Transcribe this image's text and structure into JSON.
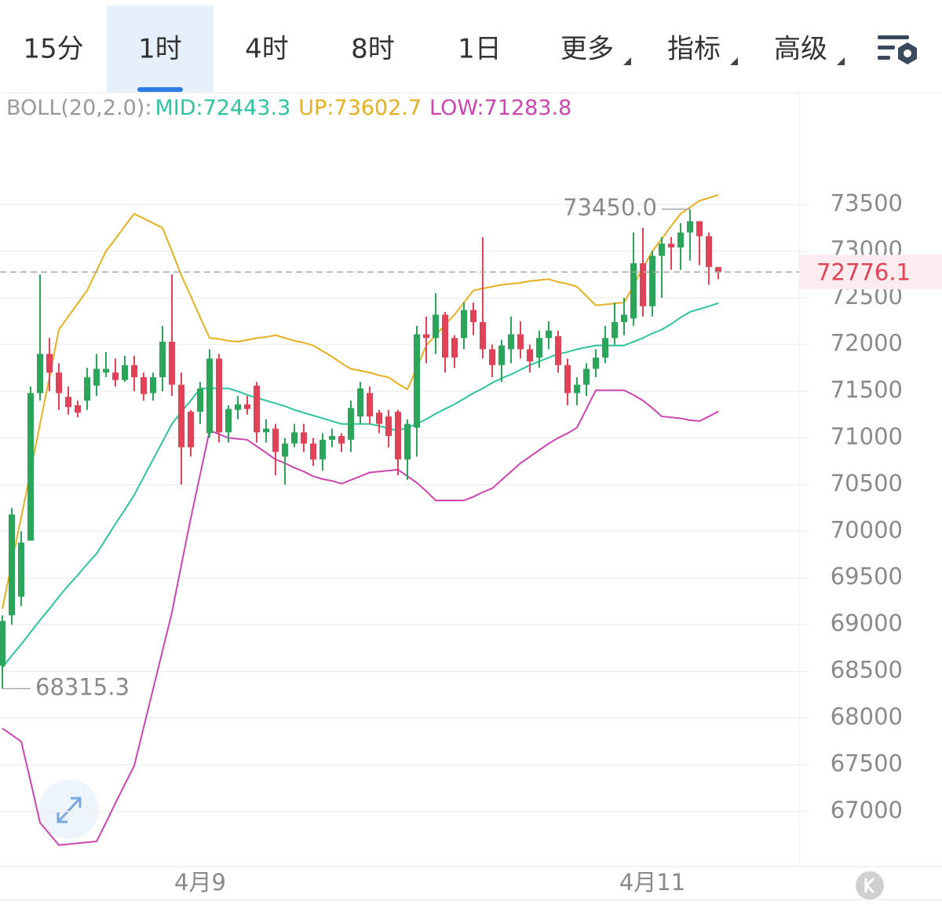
{
  "tabs": {
    "items": [
      "15分",
      "1时",
      "4时",
      "8时",
      "1日",
      "更多",
      "指标",
      "高级"
    ],
    "selected": 1
  },
  "chart_data": {
    "type": "candlestick",
    "indicator": "BOLL(20,2.0):",
    "up_color": "#2aa55a",
    "down_color": "#e04257",
    "ylim": [
      66410,
      74680
    ],
    "yticks": [
      73500,
      73000,
      72500,
      72000,
      71500,
      71000,
      70500,
      70000,
      69500,
      69000,
      68500,
      68000,
      67500,
      67000
    ],
    "xticks": [
      {
        "value": 21,
        "label": "4月9"
      },
      {
        "value": 69,
        "label": "4月11"
      }
    ],
    "grid": true,
    "last_price": {
      "value": 72776.1,
      "label": "72776.1"
    },
    "annotations": [
      {
        "index": 73,
        "value": 73450,
        "label": "73450.0"
      },
      {
        "index": 0,
        "value": 68315.3,
        "label": "68315.3"
      }
    ],
    "open": [
      68560,
      69100,
      69300,
      69900,
      71480,
      71900,
      71700,
      71440,
      71350,
      71400,
      71560,
      71700,
      71700,
      71620,
      71780,
      71650,
      71480,
      71650,
      72030,
      71570,
      71280,
      71280,
      71050,
      71850,
      71060,
      71300,
      71360,
      71560,
      71060,
      71100,
      70800,
      70940,
      71060,
      70940,
      70770,
      70980,
      71020,
      70980,
      71230,
      71480,
      71270,
      71230,
      71280,
      70770,
      71110,
      72110,
      72070,
      72320,
      72070,
      72070,
      72370,
      72240,
      71950,
      71780,
      71950,
      72110,
      71950,
      71860,
      72070,
      72090,
      71780,
      71480,
      71570,
      71740,
      71860,
      72070,
      72240,
      72280,
      72870,
      72410,
      72950,
      73080,
      73040,
      73200,
      73320,
      73160,
      72830
    ],
    "high": [
      69100,
      70250,
      70000,
      71550,
      72750,
      72070,
      71800,
      71550,
      71400,
      71750,
      71900,
      71920,
      71850,
      71880,
      71880,
      71700,
      71700,
      72200,
      72750,
      71700,
      71300,
      71600,
      71950,
      71900,
      71350,
      71450,
      71450,
      71600,
      71200,
      71150,
      71000,
      71150,
      71150,
      71000,
      71050,
      71100,
      71050,
      71400,
      71600,
      71550,
      71300,
      71300,
      71300,
      71200,
      72200,
      72300,
      72550,
      72350,
      72100,
      72450,
      72450,
      73150,
      72000,
      72050,
      72300,
      72250,
      72000,
      72150,
      72250,
      72150,
      71850,
      71650,
      71800,
      71950,
      72200,
      72450,
      72500,
      73200,
      73250,
      73000,
      73150,
      73150,
      73300,
      73450,
      73320,
      73200,
      72830
    ],
    "low": [
      68315.3,
      69000,
      69200,
      69900,
      71400,
      71500,
      71300,
      71250,
      71220,
      71300,
      71450,
      71650,
      71550,
      71600,
      71500,
      71400,
      71400,
      71500,
      71450,
      70500,
      70800,
      71150,
      71000,
      70950,
      70950,
      71200,
      71250,
      70950,
      70950,
      70600,
      70500,
      70900,
      70850,
      70700,
      70650,
      70900,
      70850,
      70850,
      71150,
      71150,
      71050,
      70900,
      70600,
      70550,
      70800,
      71800,
      71900,
      71700,
      71750,
      71950,
      72100,
      71850,
      71650,
      71600,
      71800,
      71850,
      71700,
      71750,
      71950,
      71700,
      71350,
      71350,
      71450,
      71650,
      71800,
      72000,
      72100,
      72200,
      72300,
      72300,
      72500,
      72800,
      72800,
      72900,
      72850,
      72640,
      72700
    ],
    "close": [
      69040,
      70180,
      69880,
      71480,
      71900,
      71700,
      71480,
      71330,
      71270,
      71650,
      71740,
      71740,
      71620,
      71780,
      71650,
      71470,
      71650,
      72030,
      71570,
      70900,
      70900,
      71530,
      71850,
      71060,
      71310,
      71360,
      71310,
      71060,
      71100,
      70850,
      70940,
      71060,
      70940,
      70770,
      70980,
      71020,
      70940,
      71320,
      71530,
      71230,
      71150,
      71020,
      70770,
      71150,
      72110,
      72070,
      72320,
      71860,
      71860,
      72370,
      72240,
      71950,
      71780,
      71990,
      72110,
      71950,
      71820,
      72070,
      72150,
      71780,
      71480,
      71570,
      71740,
      71860,
      72070,
      72240,
      72320,
      72870,
      72410,
      72950,
      73080,
      73040,
      73200,
      73320,
      73160,
      72830,
      72776.1
    ],
    "series": [
      {
        "name": "MID",
        "legend": "MID:72443.3",
        "color": "#2ec4a0",
        "values": [
          68540,
          68670,
          68790,
          68920,
          69050,
          69170,
          69300,
          69420,
          69530,
          69650,
          69760,
          69920,
          70080,
          70230,
          70390,
          70580,
          70770,
          70960,
          71150,
          71280,
          71400,
          71530,
          71530,
          71530,
          71530,
          71500,
          71460,
          71430,
          71400,
          71370,
          71340,
          71300,
          71270,
          71240,
          71210,
          71180,
          71150,
          71150,
          71150,
          71150,
          71130,
          71100,
          71080,
          71110,
          71150,
          71200,
          71260,
          71310,
          71360,
          71420,
          71480,
          71530,
          71590,
          71640,
          71680,
          71730,
          71780,
          71820,
          71860,
          71900,
          71920,
          71950,
          71970,
          71990,
          71990,
          71990,
          71990,
          72030,
          72070,
          72120,
          72160,
          72220,
          72290,
          72350,
          72380,
          72410,
          72443.3
        ]
      },
      {
        "name": "UP",
        "legend": "UP:73602.7",
        "color": "#e6b020",
        "values": [
          69170,
          69660,
          70150,
          70640,
          71150,
          71650,
          72160,
          72300,
          72440,
          72580,
          72790,
          73000,
          73130,
          73270,
          73400,
          73350,
          73300,
          73250,
          73000,
          72740,
          72520,
          72290,
          72070,
          72060,
          72040,
          72030,
          72050,
          72070,
          72080,
          72100,
          72070,
          72040,
          72020,
          71990,
          71930,
          71870,
          71800,
          71740,
          71720,
          71700,
          71670,
          71650,
          71580,
          71520,
          71750,
          71990,
          72100,
          72210,
          72320,
          72450,
          72580,
          72600,
          72620,
          72640,
          72650,
          72660,
          72680,
          72690,
          72700,
          72670,
          72650,
          72620,
          72520,
          72420,
          72430,
          72440,
          72450,
          72630,
          72820,
          73000,
          73130,
          73270,
          73400,
          73470,
          73540,
          73570,
          73602.7
        ]
      },
      {
        "name": "LOW",
        "legend": "LOW:71283.8",
        "color": "#cc45b0",
        "values": [
          67890,
          67820,
          67750,
          67320,
          66880,
          66760,
          66640,
          66650,
          66660,
          66670,
          66680,
          66880,
          67090,
          67290,
          67490,
          67900,
          68310,
          68720,
          69130,
          69640,
          70140,
          70610,
          71080,
          71040,
          71000,
          70990,
          70980,
          70910,
          70840,
          70770,
          70730,
          70680,
          70640,
          70590,
          70560,
          70540,
          70510,
          70550,
          70590,
          70630,
          70640,
          70650,
          70660,
          70590,
          70520,
          70430,
          70330,
          70330,
          70330,
          70330,
          70370,
          70420,
          70460,
          70550,
          70640,
          70730,
          70800,
          70870,
          70940,
          71000,
          71050,
          71110,
          71310,
          71510,
          71510,
          71510,
          71510,
          71460,
          71400,
          71320,
          71230,
          71220,
          71210,
          71190,
          71180,
          71230,
          71283.8
        ]
      }
    ]
  }
}
